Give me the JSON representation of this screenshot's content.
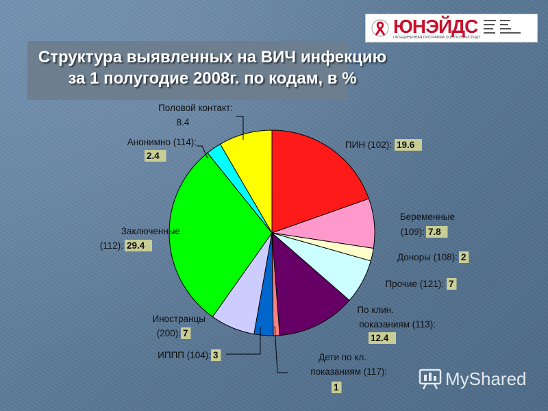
{
  "title": {
    "line1": "Структура выявленных на ВИЧ инфекцию",
    "line2": "за 1 полугодие 2008г. по кодам, в %"
  },
  "logo": {
    "brand": "ЮНЭЙДС",
    "subtitle": "ОБЪЕДИНЕННАЯ ПРОГРАММА ООН ПО ВИЧ/СПИДУ"
  },
  "watermark": {
    "text": "MyShared"
  },
  "chart_data": {
    "type": "pie",
    "start_angle_deg": 0,
    "direction": "clockwise",
    "slices": [
      {
        "name": "ПИН (102):",
        "value": 19.6,
        "value_label": "19.6",
        "color": "#ff1a1a"
      },
      {
        "name": "Беременные (109):",
        "value": 7.8,
        "value_label": "7.8",
        "color": "#ff99cc"
      },
      {
        "name": "Доноры (108):",
        "value": 2,
        "value_label": "2",
        "color": "#ffffcc"
      },
      {
        "name": "Прочие (121):",
        "value": 7,
        "value_label": "7",
        "color": "#ccffff"
      },
      {
        "name": "По клин. показаниям (113):",
        "value": 12.4,
        "value_label": "12.4",
        "color": "#660066"
      },
      {
        "name": "Дети по кл. показаниям (117):",
        "value": 1,
        "value_label": "1",
        "color": "#ff8080"
      },
      {
        "name": "ИППП (104):",
        "value": 3,
        "value_label": "3",
        "color": "#0066cc"
      },
      {
        "name": "Иностранцы (200):",
        "value": 7,
        "value_label": "7",
        "color": "#ccccff"
      },
      {
        "name": "Заключенные (112):",
        "value": 29.4,
        "value_label": "29.4",
        "color": "#00ff00"
      },
      {
        "name": "Анонимно (114):",
        "value": 2.4,
        "value_label": "2.4",
        "color": "#00ffff"
      },
      {
        "name": "Половой контакт:",
        "value": 8.4,
        "value_label": "8.4",
        "color": "#ffff00"
      }
    ],
    "value_label_bg": "#c8cd96"
  }
}
